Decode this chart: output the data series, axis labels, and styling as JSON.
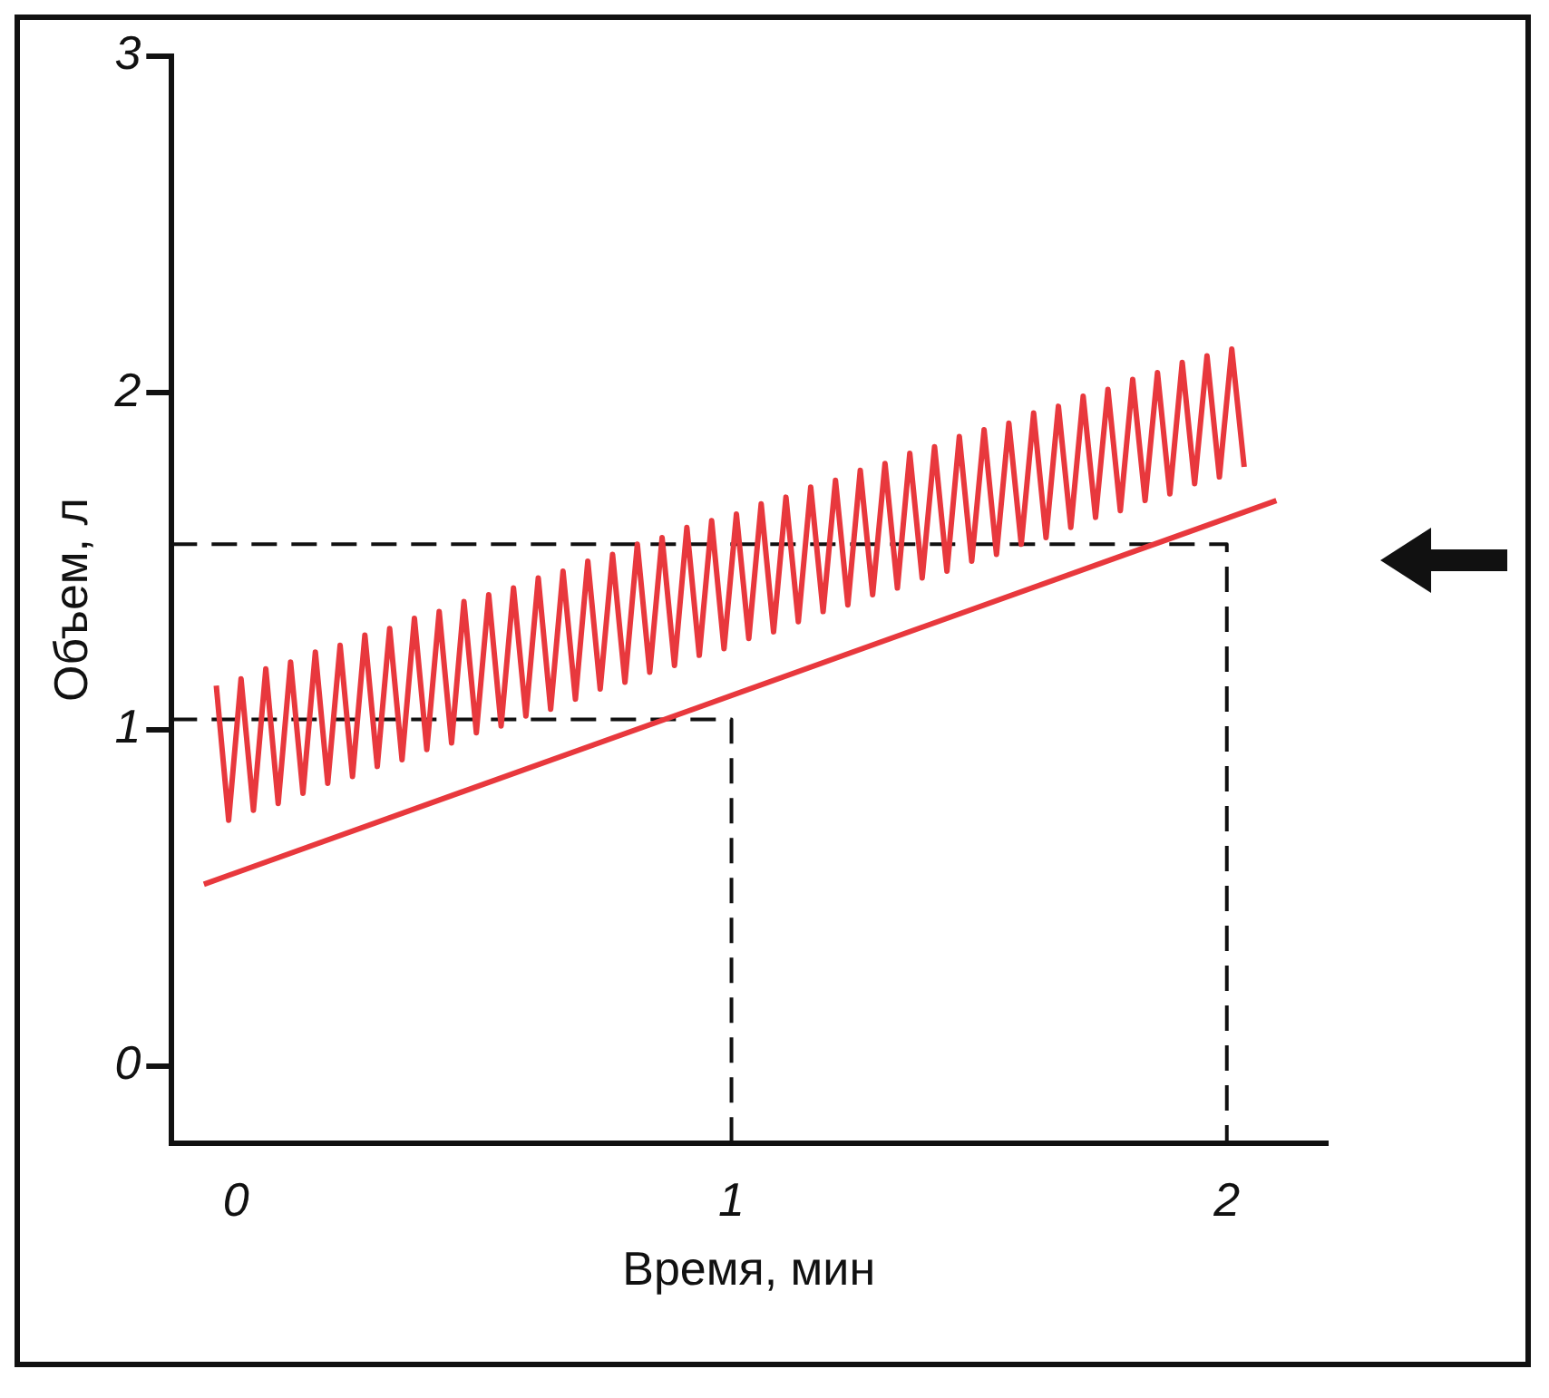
{
  "chart_data": {
    "type": "line",
    "xlabel": "Время, мин",
    "ylabel": "Объем, л",
    "xlim": [
      -0.13,
      2.2
    ],
    "ylim": [
      -0.23,
      3
    ],
    "xticks": [
      0,
      1,
      2
    ],
    "yticks": [
      0,
      1,
      2,
      3
    ],
    "grid": false,
    "legend": false,
    "marker": "none",
    "series": [
      {
        "color": "#e8383d",
        "line_style": "solid",
        "x": [
          -0.04,
          -0.015,
          0.01,
          0.035,
          0.06,
          0.085,
          0.11,
          0.135,
          0.16,
          0.185,
          0.21,
          0.235,
          0.26,
          0.285,
          0.31,
          0.335,
          0.36,
          0.385,
          0.41,
          0.435,
          0.46,
          0.485,
          0.51,
          0.535,
          0.56,
          0.585,
          0.61,
          0.635,
          0.66,
          0.685,
          0.71,
          0.735,
          0.76,
          0.785,
          0.81,
          0.835,
          0.86,
          0.885,
          0.91,
          0.935,
          0.96,
          0.985,
          1.01,
          1.035,
          1.06,
          1.085,
          1.11,
          1.135,
          1.16,
          1.185,
          1.21,
          1.235,
          1.26,
          1.285,
          1.31,
          1.335,
          1.36,
          1.385,
          1.41,
          1.435,
          1.46,
          1.485,
          1.51,
          1.535,
          1.56,
          1.585,
          1.61,
          1.635,
          1.66,
          1.685,
          1.71,
          1.735,
          1.76,
          1.785,
          1.81,
          1.835,
          1.86,
          1.885,
          1.91,
          1.935,
          1.96,
          1.985,
          2.01,
          2.035
        ],
        "values": [
          1.13,
          0.73,
          1.15,
          0.76,
          1.18,
          0.78,
          1.2,
          0.81,
          1.23,
          0.84,
          1.25,
          0.86,
          1.28,
          0.89,
          1.3,
          0.91,
          1.33,
          0.94,
          1.35,
          0.96,
          1.38,
          0.99,
          1.4,
          1.01,
          1.42,
          1.04,
          1.45,
          1.06,
          1.47,
          1.09,
          1.5,
          1.12,
          1.52,
          1.14,
          1.55,
          1.17,
          1.57,
          1.19,
          1.6,
          1.22,
          1.62,
          1.24,
          1.64,
          1.27,
          1.67,
          1.29,
          1.69,
          1.32,
          1.72,
          1.35,
          1.74,
          1.37,
          1.77,
          1.4,
          1.79,
          1.42,
          1.82,
          1.45,
          1.84,
          1.47,
          1.87,
          1.5,
          1.89,
          1.52,
          1.91,
          1.55,
          1.94,
          1.57,
          1.96,
          1.6,
          1.99,
          1.63,
          2.01,
          1.65,
          2.04,
          1.68,
          2.06,
          1.7,
          2.09,
          1.73,
          2.11,
          1.75,
          2.13,
          1.78
        ]
      },
      {
        "color": "#e8383d",
        "line_style": "solid",
        "x": [
          -0.065,
          2.1
        ],
        "values": [
          0.54,
          1.68
        ]
      },
      {
        "color": "#111111",
        "line_style": "dashed",
        "x": [
          -0.13,
          1,
          1
        ],
        "values": [
          1.03,
          1.03,
          -0.23
        ]
      },
      {
        "color": "#111111",
        "line_style": "dashed",
        "x": [
          -0.13,
          2,
          2
        ],
        "values": [
          1.55,
          1.55,
          -0.23
        ]
      }
    ]
  }
}
